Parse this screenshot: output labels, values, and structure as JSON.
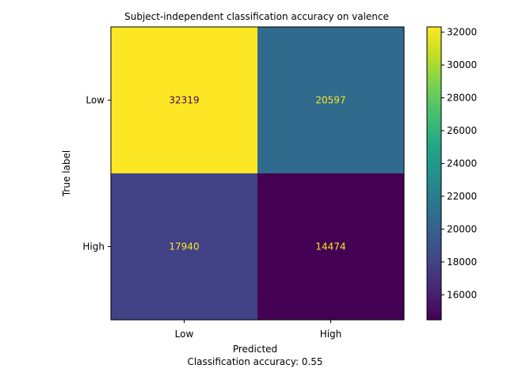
{
  "chart_data": {
    "type": "heatmap",
    "title": "Subject-independent classification accuracy on valence",
    "xlabel": "Predicted",
    "ylabel": "True label",
    "footer": "Classification accuracy: 0.55",
    "x_categories": [
      "Low",
      "High"
    ],
    "y_categories": [
      "Low",
      "High"
    ],
    "matrix": [
      [
        32319,
        20597
      ],
      [
        17940,
        14474
      ]
    ],
    "colormap": "viridis",
    "colorbar": {
      "range": [
        14474,
        32319
      ],
      "ticks": [
        16000,
        18000,
        20000,
        22000,
        24000,
        26000,
        28000,
        30000,
        32000
      ]
    },
    "grid": false
  }
}
